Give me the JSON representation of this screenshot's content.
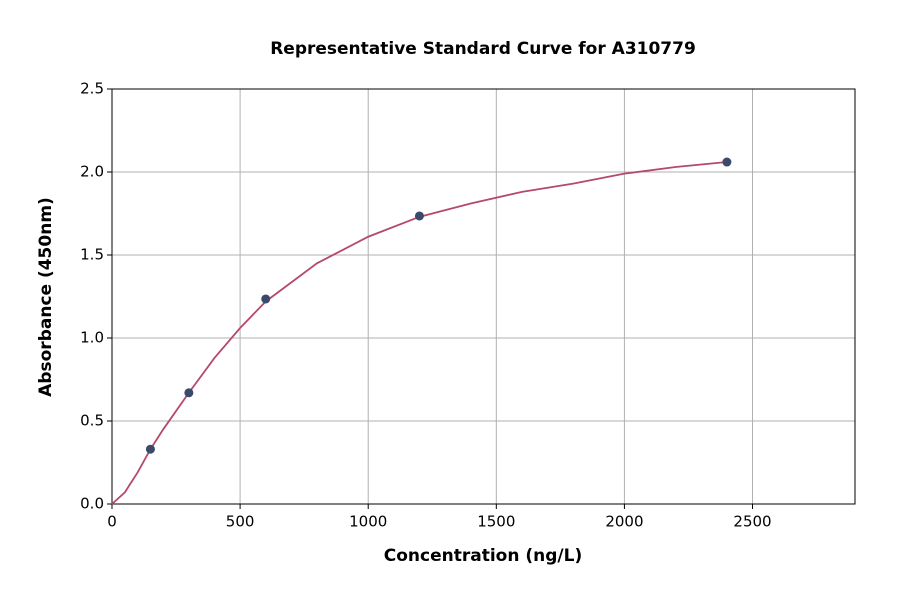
{
  "chart_data": {
    "type": "scatter",
    "title": "Representative Standard Curve for A310779",
    "x_label": "Concentration (ng/L)",
    "y_label": "Absorbance (450nm)",
    "xlim": [
      0,
      2900
    ],
    "ylim": [
      0,
      2.5
    ],
    "xticks": [
      0,
      500,
      1000,
      1500,
      2000,
      2500
    ],
    "yticks": [
      {
        "value": 0,
        "label": "0.0"
      },
      0.5,
      {
        "value": 1,
        "label": "1.0"
      },
      1.5,
      {
        "value": 2,
        "label": "2.0"
      },
      2.5
    ],
    "grid": true,
    "series": [
      {
        "type": "line",
        "color": "#b5496a",
        "x": [
          0,
          50,
          100,
          150,
          200,
          300,
          400,
          500,
          600,
          800,
          1000,
          1200,
          1400,
          1600,
          1800,
          2000,
          2200,
          2400
        ],
        "values": [
          0.0,
          0.07,
          0.19,
          0.33,
          0.45,
          0.67,
          0.88,
          1.06,
          1.22,
          1.45,
          1.61,
          1.73,
          1.81,
          1.88,
          1.93,
          1.99,
          2.03,
          2.06
        ]
      },
      {
        "type": "scatter",
        "color": "#3b4a6b",
        "x": [
          150,
          300,
          600,
          1200,
          2400
        ],
        "values": [
          0.33,
          0.67,
          1.235,
          1.735,
          2.06
        ]
      }
    ]
  }
}
